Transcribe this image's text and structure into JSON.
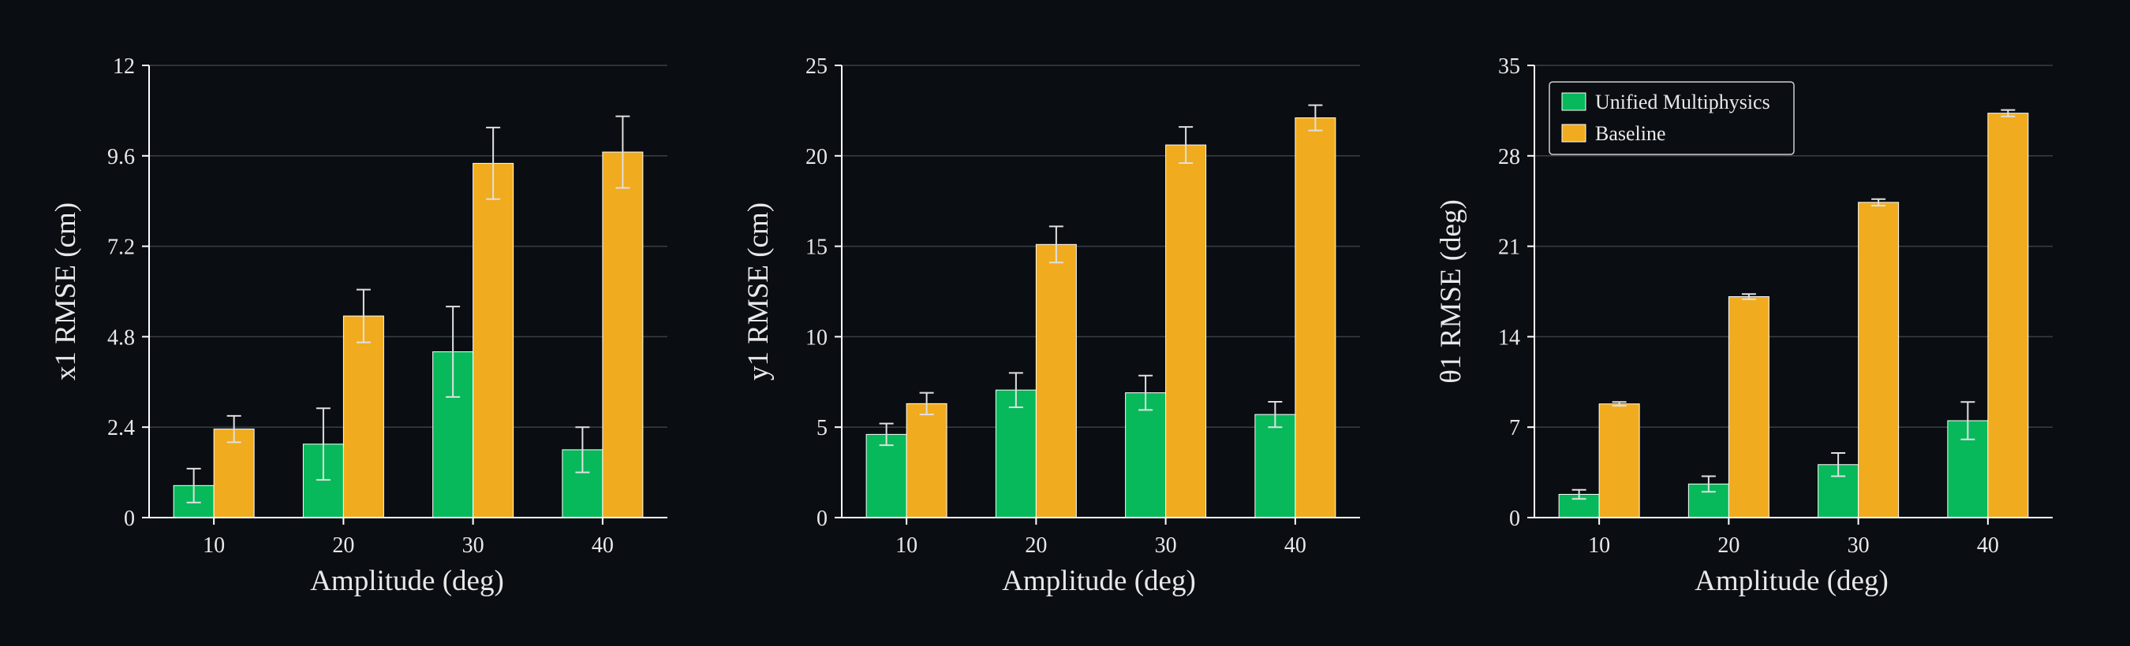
{
  "colors": {
    "background": "#0a0d12",
    "unified": "#07b95a",
    "baseline": "#f0ab1e",
    "axis": "#ffffff",
    "grid": "#3a3f47",
    "text": "#e8e8e8",
    "errorbar": "#e0e0e0"
  },
  "chart_data": [
    {
      "type": "bar",
      "categories": [
        "10",
        "20",
        "30",
        "40"
      ],
      "xlabel": "Amplitude (deg)",
      "ylabel": "x1 RMSE (cm)",
      "ylim": [
        0,
        12
      ],
      "yticks": [
        "0",
        "2.4",
        "4.8",
        "7.2",
        "9.6",
        "12"
      ],
      "grid": true,
      "series": [
        {
          "name": "Unified Multiphysics",
          "values": [
            0.85,
            1.95,
            4.4,
            1.8
          ],
          "errors": [
            0.45,
            0.95,
            1.2,
            0.6
          ]
        },
        {
          "name": "Baseline",
          "values": [
            2.35,
            5.35,
            9.4,
            9.7
          ],
          "errors": [
            0.35,
            0.7,
            0.95,
            0.95
          ]
        }
      ]
    },
    {
      "type": "bar",
      "categories": [
        "10",
        "20",
        "30",
        "40"
      ],
      "xlabel": "Amplitude (deg)",
      "ylabel": "y1 RMSE (cm)",
      "ylim": [
        0,
        25
      ],
      "yticks": [
        "0",
        "5",
        "10",
        "15",
        "20",
        "25"
      ],
      "grid": true,
      "series": [
        {
          "name": "Unified Multiphysics",
          "values": [
            4.6,
            7.05,
            6.9,
            5.7
          ],
          "errors": [
            0.6,
            0.95,
            0.95,
            0.7
          ]
        },
        {
          "name": "Baseline",
          "values": [
            6.3,
            15.1,
            20.6,
            22.1
          ],
          "errors": [
            0.6,
            1.0,
            1.0,
            0.7
          ]
        }
      ]
    },
    {
      "type": "bar",
      "categories": [
        "10",
        "20",
        "30",
        "40"
      ],
      "xlabel": "Amplitude (deg)",
      "ylabel": "θ1 RMSE (deg)",
      "ylim": [
        0,
        35
      ],
      "yticks": [
        "0",
        "7",
        "14",
        "21",
        "28",
        "35"
      ],
      "grid": true,
      "legend": {
        "placement": "top-left",
        "entries": [
          "Unified Multiphysics",
          "Baseline"
        ]
      },
      "series": [
        {
          "name": "Unified Multiphysics",
          "values": [
            1.8,
            2.6,
            4.1,
            7.5
          ],
          "errors": [
            0.35,
            0.6,
            0.9,
            1.45
          ]
        },
        {
          "name": "Baseline",
          "values": [
            8.8,
            17.1,
            24.4,
            31.3
          ],
          "errors": [
            0.15,
            0.2,
            0.25,
            0.25
          ]
        }
      ]
    }
  ]
}
